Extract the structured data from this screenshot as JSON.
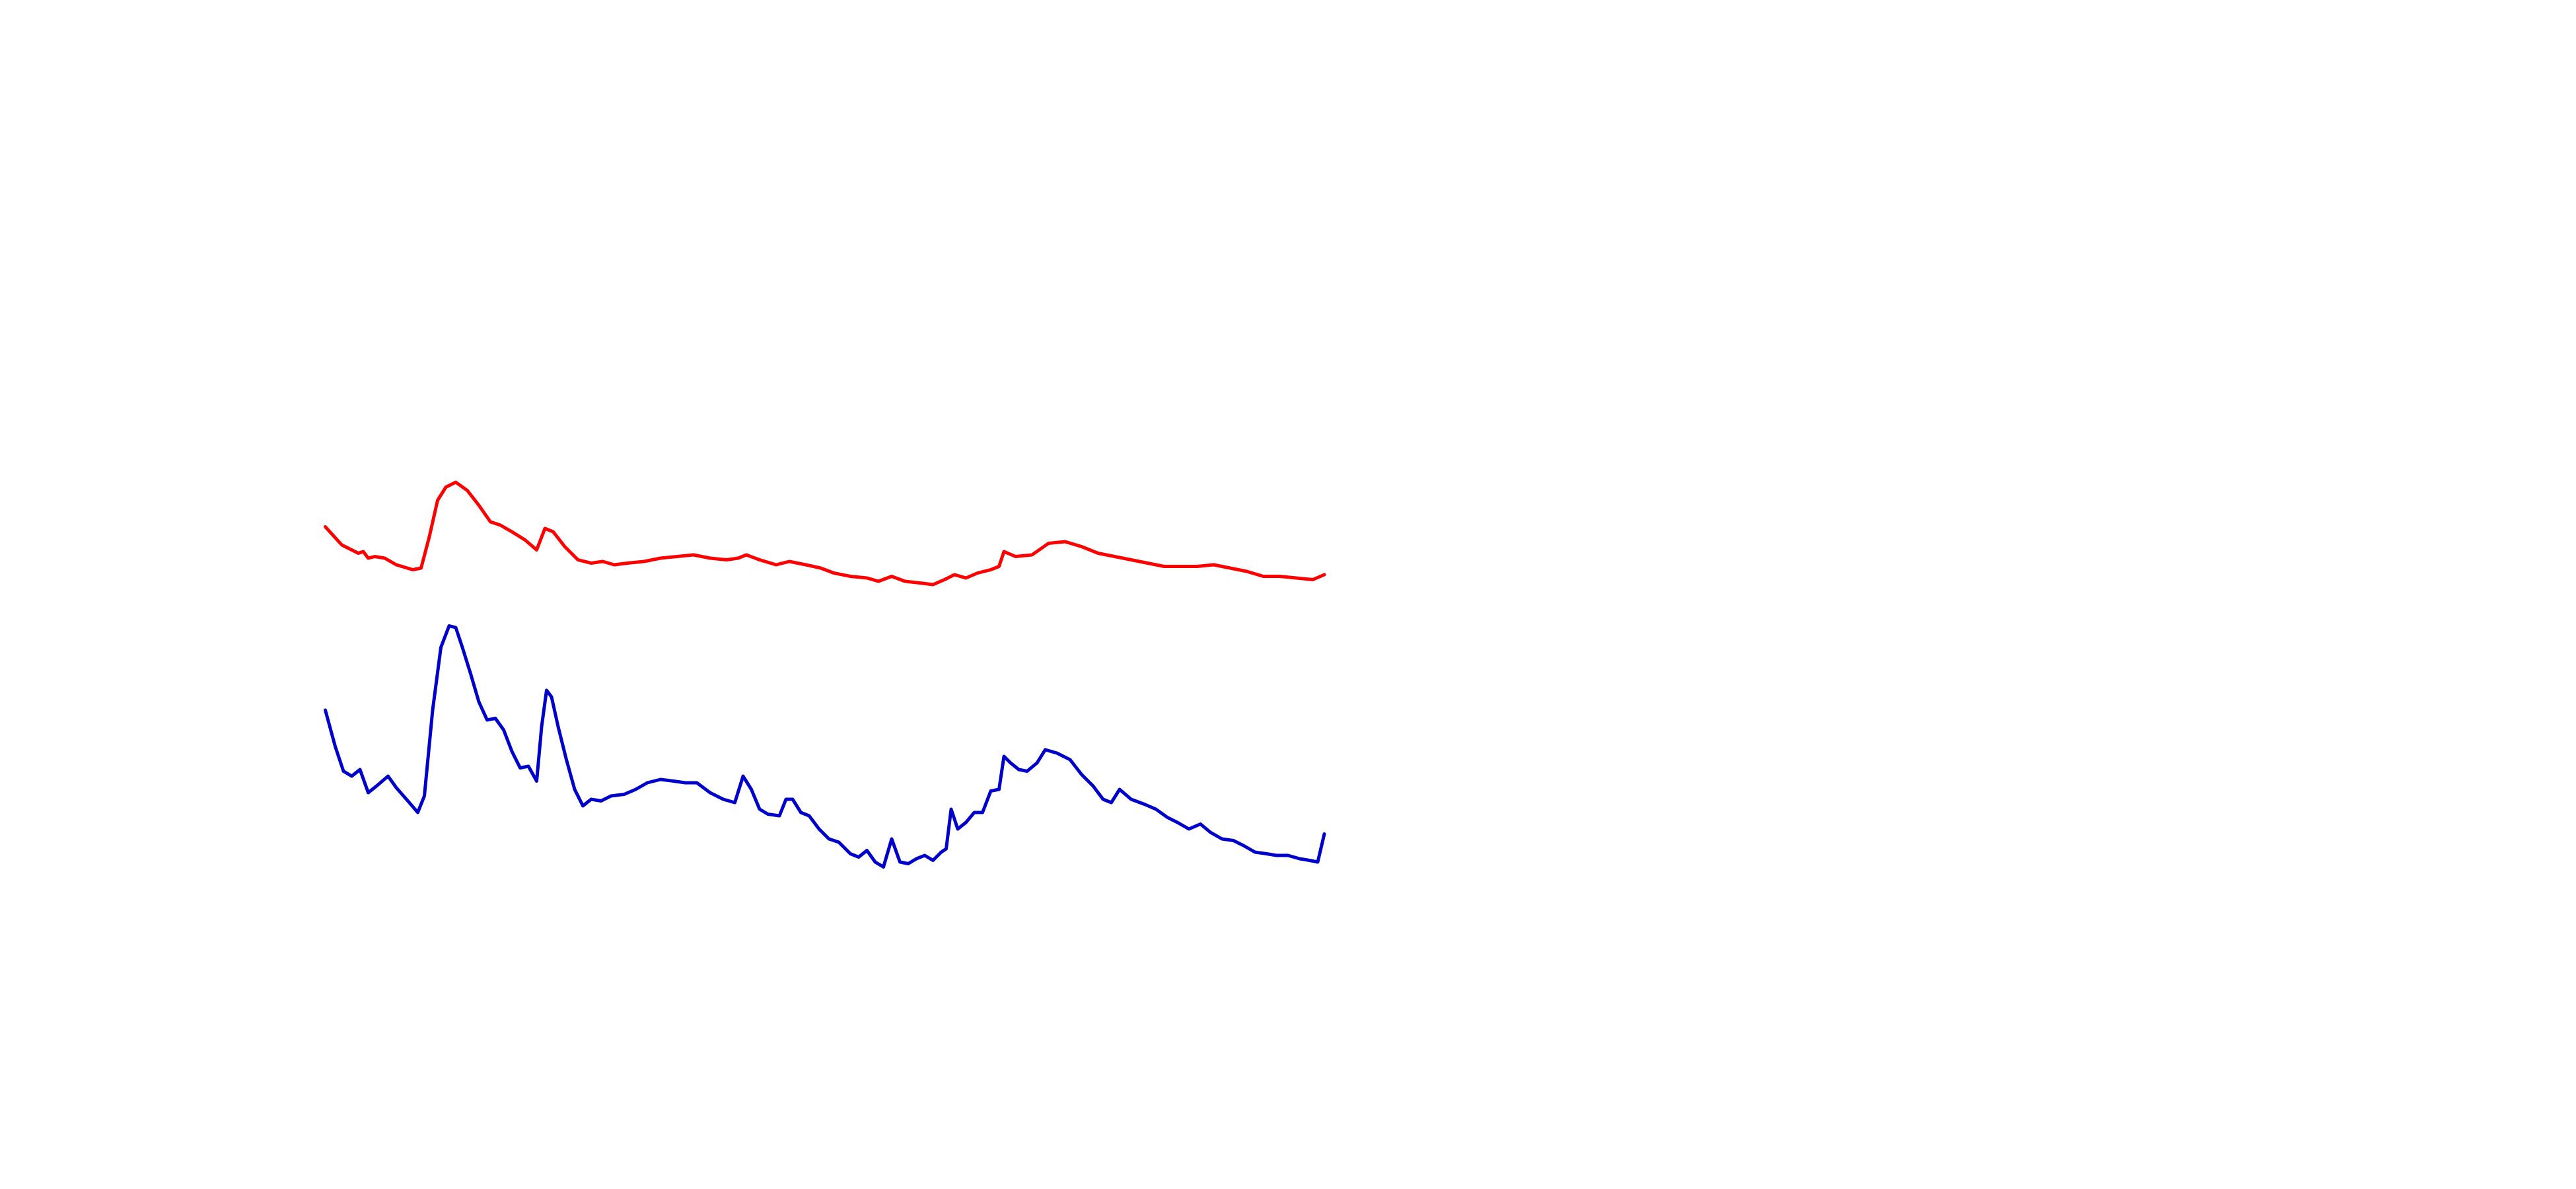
{
  "chart_data": {
    "type": "line",
    "xlim": [
      0,
      1560
    ],
    "ylim": [
      0,
      720
    ],
    "series": [
      {
        "color": "#ff0000",
        "x": [
          197,
          207,
          217,
          220,
          223,
          227,
          233,
          240,
          250,
          255,
          260,
          265,
          270,
          276,
          283,
          290,
          297,
          303,
          310,
          318,
          325,
          330,
          335,
          342,
          350,
          358,
          365,
          372,
          380,
          390,
          400,
          410,
          420,
          430,
          440,
          447,
          452,
          460,
          470,
          478,
          488,
          497,
          505,
          515,
          525,
          532,
          540,
          548,
          557,
          565,
          572,
          578,
          585,
          592,
          600,
          605,
          608,
          615,
          625,
          635,
          645,
          655,
          665,
          675,
          685,
          695,
          705,
          715,
          725,
          735,
          745,
          755,
          765,
          775,
          785,
          795,
          802
        ],
        "values": [
          401,
          390,
          385,
          386,
          382,
          383,
          382,
          378,
          375,
          376,
          395,
          417,
          425,
          428,
          423,
          414,
          404,
          402,
          398,
          393,
          387,
          400,
          398,
          389,
          381,
          379,
          380,
          378,
          379,
          380,
          382,
          383,
          384,
          382,
          381,
          382,
          384,
          381,
          378,
          380,
          378,
          376,
          373,
          371,
          370,
          368,
          371,
          368,
          367,
          366,
          369,
          372,
          370,
          373,
          375,
          377,
          386,
          383,
          384,
          391,
          392,
          389,
          385,
          383,
          381,
          379,
          377,
          377,
          377,
          378,
          376,
          374,
          371,
          371,
          370,
          369,
          372
        ]
      },
      {
        "color": "#0000cc",
        "x": [
          197,
          203,
          208,
          213,
          218,
          223,
          228,
          235,
          240,
          247,
          253,
          257,
          262,
          267,
          272,
          276,
          280,
          285,
          290,
          295,
          300,
          305,
          310,
          315,
          320,
          325,
          328,
          331,
          334,
          338,
          343,
          348,
          353,
          358,
          364,
          370,
          378,
          385,
          392,
          400,
          408,
          415,
          422,
          430,
          438,
          445,
          450,
          455,
          460,
          465,
          472,
          476,
          480,
          485,
          490,
          496,
          502,
          508,
          515,
          520,
          525,
          530,
          535,
          540,
          545,
          550,
          555,
          560,
          565,
          570,
          573,
          576,
          580,
          585,
          590,
          595,
          600,
          605,
          608,
          612,
          617,
          622,
          628,
          633,
          640,
          648,
          655,
          662,
          668,
          673,
          678,
          685,
          693,
          700,
          707,
          713,
          720,
          727,
          733,
          740,
          747,
          753,
          760,
          767,
          773,
          780,
          787,
          793,
          798,
          802
        ],
        "values": [
          290,
          268,
          253,
          250,
          254,
          240,
          244,
          250,
          243,
          235,
          228,
          238,
          290,
          328,
          341,
          340,
          328,
          312,
          295,
          284,
          285,
          278,
          265,
          255,
          256,
          247,
          280,
          302,
          298,
          280,
          260,
          242,
          232,
          236,
          235,
          238,
          239,
          242,
          246,
          248,
          247,
          246,
          246,
          240,
          236,
          234,
          250,
          242,
          230,
          227,
          226,
          236,
          236,
          228,
          226,
          218,
          212,
          210,
          203,
          201,
          205,
          198,
          195,
          212,
          198,
          197,
          200,
          202,
          199,
          204,
          206,
          230,
          218,
          222,
          228,
          228,
          241,
          242,
          262,
          258,
          254,
          253,
          258,
          266,
          264,
          260,
          251,
          244,
          236,
          234,
          242,
          236,
          233,
          230,
          225,
          222,
          218,
          221,
          216,
          212,
          211,
          208,
          204,
          203,
          202,
          202,
          200,
          199,
          198,
          215
        ]
      }
    ]
  }
}
